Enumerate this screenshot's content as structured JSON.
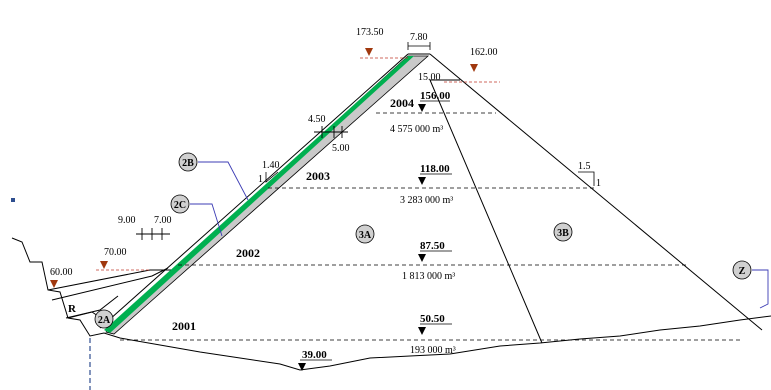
{
  "colors": {
    "outline": "#000000",
    "face_slab": "#00b050",
    "face_cushion": "#c9c9c9",
    "water_marker": "#a0380e",
    "water_line": "#c0392b",
    "leader": "#3c3cb4",
    "marker_bg": "#d0d0d0",
    "axis_blue": "#2e4e8f"
  },
  "crest": {
    "width_label": "7.80"
  },
  "water_levels": [
    {
      "value": "173.50"
    },
    {
      "value": "162.00"
    },
    {
      "value": "70.00"
    },
    {
      "value": "60.00"
    }
  ],
  "slope_labels": {
    "upstream_v": "1",
    "upstream_h": "1.40",
    "downstream_v": "1",
    "downstream_h": "1.5",
    "upper_berm_left": "4.50",
    "upper_berm_right": "5.00",
    "lower_berm_left": "9.00",
    "lower_berm_right": "7.00",
    "crest_offset": "15.00"
  },
  "stages": [
    {
      "name": "2004",
      "elevation": "156.00",
      "volume": "4 575 000 m³"
    },
    {
      "name": "2003",
      "elevation": "118.00",
      "volume": "3 283 000 m³"
    },
    {
      "name": "2002",
      "elevation": "87.50",
      "volume": "1 813 000 m³"
    },
    {
      "name": "2001",
      "elevation": "50.50",
      "volume": "193 000 m³"
    }
  ],
  "foundation_elevation": "39.00",
  "zones": {
    "z2a": "2A",
    "z2b": "2B",
    "z2c": "2C",
    "z3a": "3A",
    "z3b": "3B",
    "zz": "Z",
    "zr": "R"
  }
}
